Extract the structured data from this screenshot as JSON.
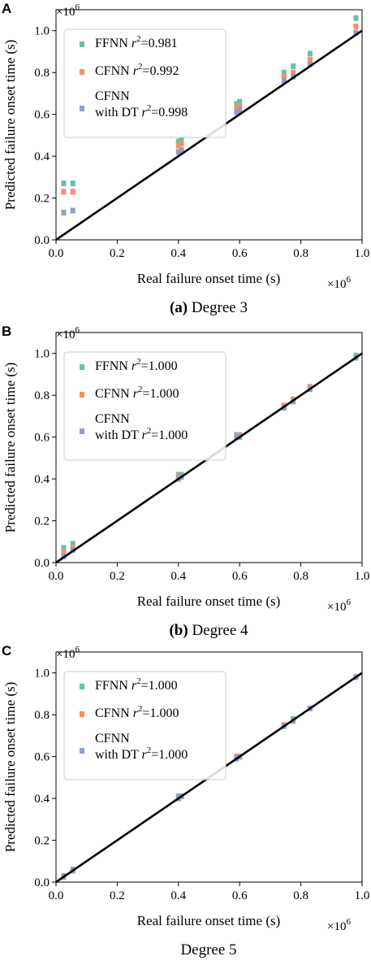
{
  "colors": {
    "ffnn": "#66c2a5",
    "cfnn": "#fc8d62",
    "cfnn_dt": "#8da0cb",
    "identity_line": "#000000"
  },
  "chart_data": [
    {
      "type": "scatter",
      "panel_letter": "A",
      "caption_bold": "(a)",
      "caption_text": "Degree 3",
      "xlabel": "Real failure onset time (s)",
      "ylabel": "Predicted failure onset time (s)",
      "x_multiplier": "×10",
      "x_multiplier_exp": "6",
      "y_multiplier": "×10",
      "y_multiplier_exp": "6",
      "xlim": [
        0,
        1.0
      ],
      "ylim": [
        0,
        1.1
      ],
      "xticks": [
        "0.0",
        "0.2",
        "0.4",
        "0.6",
        "0.8",
        "1.0"
      ],
      "yticks": [
        "0.0",
        "0.2",
        "0.4",
        "0.6",
        "0.8",
        "1.0"
      ],
      "grid": false,
      "legend_position": "top-left",
      "legend": [
        {
          "label": "FFNN",
          "r2": "=0.981"
        },
        {
          "label": "CFNN",
          "r2": "=0.992"
        },
        {
          "label": "CFNN",
          "label2": "with DT",
          "r2": "=0.998"
        }
      ],
      "x": [
        0.025,
        0.055,
        0.4,
        0.41,
        0.59,
        0.6,
        0.745,
        0.775,
        0.83,
        0.98
      ],
      "series": [
        {
          "name": "FFNN",
          "values": [
            0.27,
            0.27,
            0.47,
            0.48,
            0.65,
            0.66,
            0.8,
            0.83,
            0.89,
            1.06
          ]
        },
        {
          "name": "CFNN",
          "values": [
            0.23,
            0.23,
            0.45,
            0.46,
            0.63,
            0.64,
            0.78,
            0.8,
            0.86,
            1.02
          ]
        },
        {
          "name": "CFNN with DT",
          "values": [
            0.13,
            0.14,
            0.42,
            0.43,
            0.61,
            0.62,
            0.76,
            0.78,
            0.84,
            0.99
          ]
        }
      ]
    },
    {
      "type": "scatter",
      "panel_letter": "B",
      "caption_bold": "(b)",
      "caption_text": "Degree 4",
      "xlabel": "Real failure onset time (s)",
      "ylabel": "Predicted failure onset time (s)",
      "x_multiplier": "×10",
      "x_multiplier_exp": "6",
      "y_multiplier": "×10",
      "y_multiplier_exp": "6",
      "xlim": [
        0,
        1.0
      ],
      "ylim": [
        0,
        1.1
      ],
      "xticks": [
        "0.0",
        "0.2",
        "0.4",
        "0.6",
        "0.8",
        "1.0"
      ],
      "yticks": [
        "0.0",
        "0.2",
        "0.4",
        "0.6",
        "0.8",
        "1.0"
      ],
      "grid": false,
      "legend_position": "top-left",
      "legend": [
        {
          "label": "FFNN",
          "r2": "=1.000"
        },
        {
          "label": "CFNN",
          "r2": "=1.000"
        },
        {
          "label": "CFNN",
          "label2": "with DT",
          "r2": "=1.000"
        }
      ],
      "x": [
        0.025,
        0.055,
        0.4,
        0.41,
        0.59,
        0.6,
        0.745,
        0.775,
        0.83,
        0.98
      ],
      "series": [
        {
          "name": "FFNN",
          "values": [
            0.07,
            0.09,
            0.42,
            0.42,
            0.61,
            0.61,
            0.75,
            0.78,
            0.84,
            0.99
          ]
        },
        {
          "name": "CFNN",
          "values": [
            0.05,
            0.07,
            0.41,
            0.41,
            0.6,
            0.61,
            0.75,
            0.78,
            0.84,
            0.98
          ]
        },
        {
          "name": "CFNN with DT",
          "values": [
            0.03,
            0.06,
            0.4,
            0.41,
            0.6,
            0.6,
            0.74,
            0.77,
            0.83,
            0.98
          ]
        }
      ]
    },
    {
      "type": "scatter",
      "panel_letter": "C",
      "caption_bold": "",
      "caption_text": "Degree 5",
      "xlabel": "Real failure onset time (s)",
      "ylabel": "Predicted failure onset time (s)",
      "x_multiplier": "×10",
      "x_multiplier_exp": "6",
      "y_multiplier": "×10",
      "y_multiplier_exp": "6",
      "xlim": [
        0,
        1.0
      ],
      "ylim": [
        0,
        1.1
      ],
      "xticks": [
        "0.0",
        "0.2",
        "0.4",
        "0.6",
        "0.8",
        "1.0"
      ],
      "yticks": [
        "0.0",
        "0.2",
        "0.4",
        "0.6",
        "0.8",
        "1.0"
      ],
      "grid": false,
      "legend_position": "top-left",
      "legend": [
        {
          "label": "FFNN",
          "r2": "=1.000"
        },
        {
          "label": "CFNN",
          "r2": "=1.000"
        },
        {
          "label": "CFNN",
          "label2": "with DT",
          "r2": "=1.000"
        }
      ],
      "x": [
        0.025,
        0.055,
        0.4,
        0.41,
        0.59,
        0.6,
        0.745,
        0.775,
        0.83,
        0.98
      ],
      "series": [
        {
          "name": "FFNN",
          "values": [
            0.03,
            0.06,
            0.41,
            0.41,
            0.6,
            0.6,
            0.75,
            0.78,
            0.83,
            0.98
          ]
        },
        {
          "name": "CFNN",
          "values": [
            0.025,
            0.055,
            0.4,
            0.41,
            0.6,
            0.6,
            0.75,
            0.77,
            0.83,
            0.98
          ]
        },
        {
          "name": "CFNN with DT",
          "values": [
            0.025,
            0.055,
            0.4,
            0.41,
            0.59,
            0.6,
            0.745,
            0.775,
            0.83,
            0.98
          ]
        }
      ]
    }
  ]
}
